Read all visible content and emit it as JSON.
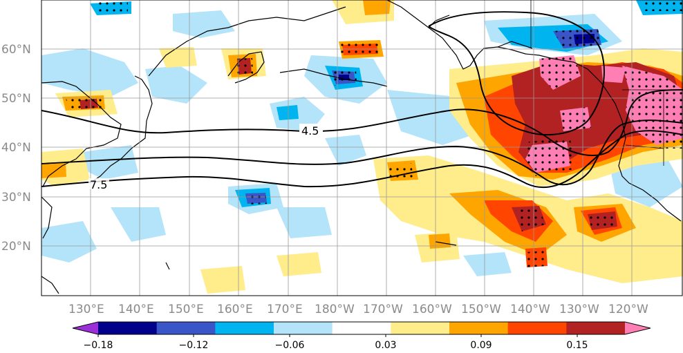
{
  "map": {
    "lat_ticks": [
      "60°N",
      "50°N",
      "40°N",
      "30°N",
      "20°N"
    ],
    "lon_ticks": [
      "130°E",
      "140°E",
      "150°E",
      "160°E",
      "170°E",
      "180°W",
      "170°W",
      "160°W",
      "150°W",
      "140°W",
      "130°W",
      "120°W"
    ],
    "contour_labels": [
      "4.5",
      "7.5"
    ]
  },
  "colorbar": {
    "colors": [
      "#9b30d9",
      "#00008b",
      "#3a55c8",
      "#00b4f0",
      "#b4e4fa",
      "#ffffff",
      "#ffec8b",
      "#ffa500",
      "#ff4500",
      "#b22222",
      "#ff7fb4"
    ],
    "tick_labels": [
      "−0.18",
      "−0.12",
      "−0.06",
      "0.03",
      "0.09",
      "0.15"
    ]
  },
  "legend_colors": {
    "land_outline": "#000000",
    "contour": "#000000"
  }
}
